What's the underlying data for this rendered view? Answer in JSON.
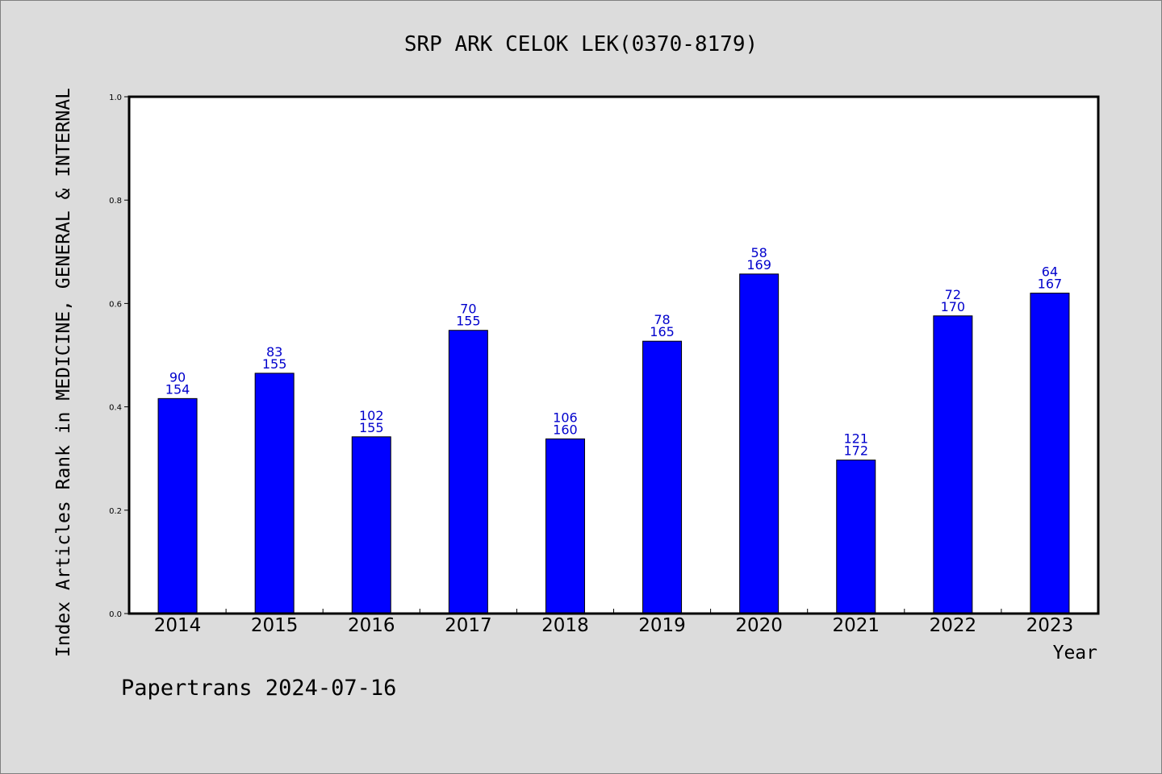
{
  "chart_data": {
    "type": "bar",
    "title": "SRP ARK CELOK LEK(0370-8179)",
    "xlabel": "Year",
    "ylabel": "Index Articles Rank in MEDICINE, GENERAL & INTERNAL",
    "ylim": [
      0,
      1.0
    ],
    "yticks": [
      "0.0",
      "0.2",
      "0.4",
      "0.6",
      "0.8",
      "1.0"
    ],
    "categories": [
      "2014",
      "2015",
      "2016",
      "2017",
      "2018",
      "2019",
      "2020",
      "2021",
      "2022",
      "2023"
    ],
    "values": [
      0.416,
      0.465,
      0.342,
      0.548,
      0.338,
      0.527,
      0.657,
      0.297,
      0.576,
      0.62
    ],
    "ranks": [
      "90",
      "83",
      "102",
      "70",
      "106",
      "78",
      "58",
      "121",
      "72",
      "64"
    ],
    "totals": [
      "154",
      "155",
      "155",
      "155",
      "160",
      "165",
      "169",
      "172",
      "170",
      "167"
    ],
    "grid": false,
    "footer": "Papertrans 2024-07-16",
    "colors": {
      "bar": "#0000ff",
      "label": "#0000cc",
      "background": "#dcdcdc",
      "plot_background": "#ffffff",
      "axis": "#000000"
    }
  }
}
